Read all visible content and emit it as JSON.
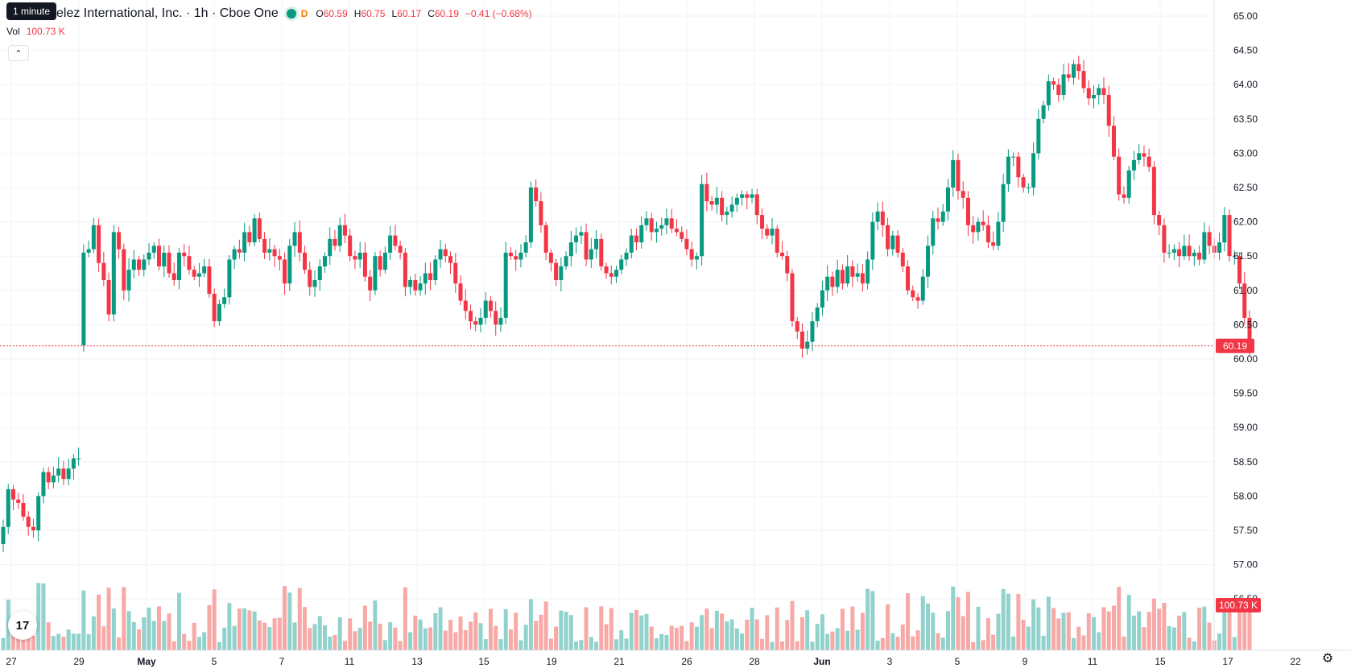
{
  "header": {
    "tooltip": "1 minute",
    "symbol_title": "elez International, Inc. · 1h · Cboe One",
    "data_badge": "D",
    "ohlc": {
      "o_label": "O",
      "o_value": "60.59",
      "h_label": "H",
      "h_value": "60.75",
      "l_label": "L",
      "l_value": "60.17",
      "c_label": "C",
      "c_value": "60.19",
      "change": "−0.41 (−0.68%)"
    },
    "volume": {
      "label": "Vol",
      "value": "100.73 K"
    }
  },
  "price_axis": {
    "ticks": [
      "65.00",
      "64.50",
      "64.00",
      "63.50",
      "63.00",
      "62.50",
      "62.00",
      "61.50",
      "61.00",
      "60.50",
      "60.00",
      "59.50",
      "59.00",
      "58.50",
      "58.00",
      "57.50",
      "57.00",
      "56.50"
    ],
    "last_price_label": "60.19",
    "last_volume_label": "100.73 K"
  },
  "time_axis": {
    "labels": [
      "27",
      "29",
      "May",
      "5",
      "7",
      "11",
      "13",
      "15",
      "19",
      "21",
      "26",
      "28",
      "Jun",
      "3",
      "5",
      "9",
      "11",
      "15",
      "17",
      "22"
    ]
  },
  "colors": {
    "up": "#089981",
    "down": "#f23645",
    "up_volume": "#92d2cc",
    "down_volume": "#f7a9a7",
    "grid": "#f0f3fa",
    "last_price_line": "#f23645"
  },
  "chart_data": {
    "type": "candlestick",
    "interval": "1h",
    "price_range": [
      56.35,
      65.1
    ],
    "candles_open": [
      57.3,
      57.55,
      58.1,
      57.95,
      57.9,
      57.7,
      57.55,
      57.5,
      58.0,
      58.35,
      58.2,
      58.3,
      58.4,
      58.25,
      58.4,
      58.55,
      60.2,
      61.55,
      61.6,
      61.95,
      61.4,
      61.15,
      60.65,
      61.85,
      61.6,
      61.0,
      61.3,
      61.45,
      61.3,
      61.45,
      61.55,
      61.65,
      61.35,
      61.55,
      61.25,
      61.15,
      61.55,
      61.5,
      61.3,
      61.2,
      61.25,
      61.35,
      60.95,
      60.55,
      60.8,
      60.9,
      61.45,
      61.6,
      61.55,
      61.85,
      61.7,
      62.05,
      61.75,
      61.55,
      61.6,
      61.5,
      61.45,
      61.1,
      61.65,
      61.85,
      61.55,
      61.3,
      61.05,
      61.15,
      61.35,
      61.5,
      61.75,
      61.65,
      61.95,
      61.8,
      61.5,
      61.45,
      61.55,
      61.2,
      61.0,
      61.5,
      61.3,
      61.55,
      61.8,
      61.65,
      61.55,
      61.05,
      61.15,
      61.0,
      61.1,
      61.25,
      61.15,
      61.45,
      61.6,
      61.5,
      61.4,
      61.1,
      60.85,
      60.7,
      60.55,
      60.5,
      60.6,
      60.85,
      60.7,
      60.5,
      60.6,
      61.55,
      61.5,
      61.45,
      61.55,
      61.7,
      62.5,
      62.3,
      61.95,
      61.55,
      61.4,
      61.15,
      61.35,
      61.5,
      61.7,
      61.8,
      61.85,
      61.45,
      61.6,
      61.75,
      61.35,
      61.25,
      61.2,
      61.3,
      61.45,
      61.55,
      61.8,
      61.7,
      61.95,
      62.05,
      61.85,
      61.9,
      61.95,
      62.05,
      61.9,
      61.85,
      61.75,
      61.6,
      61.45,
      61.5,
      62.55,
      62.3,
      62.25,
      62.35,
      62.1,
      62.15,
      62.25,
      62.35,
      62.4,
      62.35,
      62.4,
      62.1,
      61.9,
      61.8,
      61.9,
      61.55,
      61.5,
      61.25,
      60.55,
      60.4,
      60.15,
      60.25,
      60.55,
      60.75,
      61.0,
      61.2,
      61.05,
      61.3,
      61.1,
      61.35,
      61.2,
      61.25,
      61.1,
      61.45,
      62.0,
      62.15,
      61.95,
      61.6,
      61.8,
      61.55,
      61.35,
      61.0,
      60.9,
      60.85,
      61.2,
      61.65,
      62.05,
      62.0,
      62.15,
      62.5,
      62.9,
      62.45,
      62.35,
      61.95,
      61.85,
      62.0,
      61.95,
      61.7,
      61.65,
      62.0,
      62.55,
      62.95,
      62.95,
      62.65,
      62.5,
      62.5,
      63.0,
      63.5,
      63.7,
      64.05,
      64.0,
      63.85,
      64.15,
      64.1,
      64.3,
      64.2,
      63.95,
      63.8,
      63.85,
      63.95,
      63.85,
      63.4,
      62.95,
      62.4,
      62.35,
      62.75,
      62.9,
      63.0,
      62.95,
      62.8,
      62.1,
      61.95,
      61.55,
      61.55,
      61.6,
      61.5,
      61.65,
      61.5,
      61.55,
      61.45,
      61.85,
      61.65,
      61.55,
      61.7,
      62.1,
      61.5,
      61.5,
      61.1,
      60.6
    ],
    "candles_close": [
      57.55,
      58.1,
      57.95,
      57.9,
      57.7,
      57.55,
      57.5,
      58.0,
      58.35,
      58.2,
      58.3,
      58.4,
      58.25,
      58.4,
      58.55,
      58.55,
      61.55,
      61.6,
      61.95,
      61.4,
      61.15,
      60.65,
      61.85,
      61.6,
      61.0,
      61.3,
      61.45,
      61.3,
      61.45,
      61.55,
      61.65,
      61.35,
      61.55,
      61.25,
      61.15,
      61.55,
      61.5,
      61.3,
      61.2,
      61.25,
      61.35,
      60.95,
      60.55,
      60.8,
      60.9,
      61.45,
      61.6,
      61.55,
      61.85,
      61.7,
      62.05,
      61.75,
      61.55,
      61.6,
      61.5,
      61.45,
      61.1,
      61.65,
      61.85,
      61.55,
      61.3,
      61.05,
      61.15,
      61.35,
      61.5,
      61.75,
      61.65,
      61.95,
      61.8,
      61.5,
      61.45,
      61.55,
      61.2,
      61.0,
      61.5,
      61.3,
      61.55,
      61.8,
      61.65,
      61.55,
      61.05,
      61.15,
      61.0,
      61.1,
      61.25,
      61.15,
      61.45,
      61.6,
      61.5,
      61.4,
      61.1,
      60.85,
      60.7,
      60.55,
      60.5,
      60.6,
      60.85,
      60.7,
      60.5,
      60.6,
      61.55,
      61.5,
      61.45,
      61.55,
      61.7,
      62.5,
      62.3,
      61.95,
      61.55,
      61.4,
      61.15,
      61.35,
      61.5,
      61.7,
      61.8,
      61.85,
      61.45,
      61.6,
      61.75,
      61.35,
      61.25,
      61.2,
      61.3,
      61.45,
      61.55,
      61.8,
      61.7,
      61.95,
      62.05,
      61.85,
      61.9,
      61.95,
      62.05,
      61.9,
      61.85,
      61.75,
      61.6,
      61.45,
      61.5,
      62.55,
      62.3,
      62.25,
      62.35,
      62.1,
      62.15,
      62.25,
      62.35,
      62.4,
      62.35,
      62.4,
      62.1,
      61.9,
      61.8,
      61.9,
      61.55,
      61.5,
      61.25,
      60.55,
      60.4,
      60.15,
      60.25,
      60.55,
      60.75,
      61.0,
      61.2,
      61.05,
      61.3,
      61.1,
      61.35,
      61.2,
      61.25,
      61.1,
      61.45,
      62.0,
      62.15,
      61.95,
      61.6,
      61.8,
      61.55,
      61.35,
      61.0,
      60.9,
      60.85,
      61.2,
      61.65,
      62.05,
      62.0,
      62.15,
      62.5,
      62.9,
      62.45,
      62.35,
      61.95,
      61.85,
      62.0,
      61.95,
      61.7,
      61.65,
      62.0,
      62.55,
      62.95,
      62.95,
      62.65,
      62.5,
      62.5,
      63.0,
      63.5,
      63.7,
      64.05,
      64.0,
      63.85,
      64.15,
      64.1,
      64.3,
      64.2,
      63.95,
      63.8,
      63.85,
      63.95,
      63.85,
      63.4,
      62.95,
      62.4,
      62.35,
      62.75,
      62.9,
      63.0,
      62.95,
      62.8,
      62.1,
      61.95,
      61.55,
      61.55,
      61.6,
      61.5,
      61.65,
      61.5,
      61.55,
      61.45,
      61.85,
      61.65,
      61.55,
      61.7,
      62.1,
      61.5,
      61.5,
      61.1,
      60.6,
      60.19
    ],
    "last_price": 60.19,
    "volume_unit": "K",
    "last_volume": 100.73
  }
}
